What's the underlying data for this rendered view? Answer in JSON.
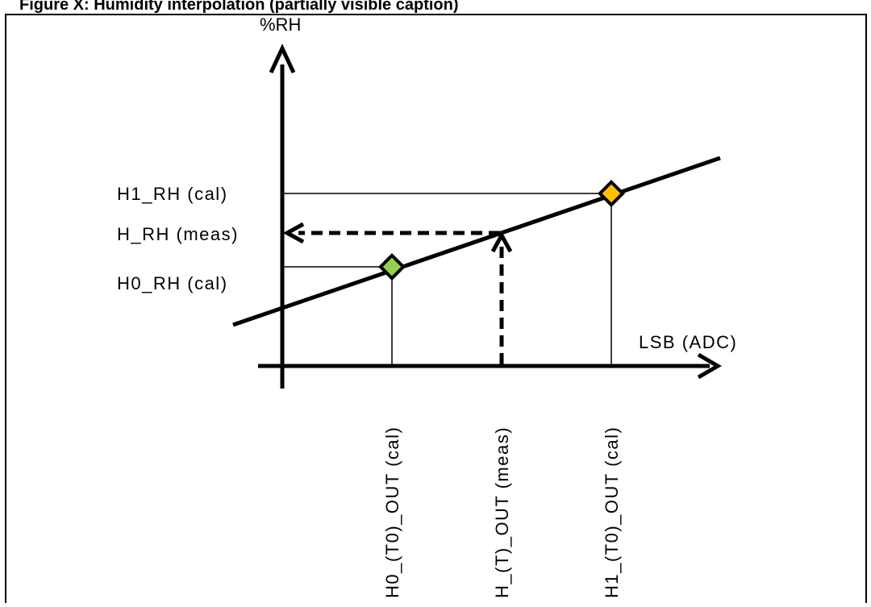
{
  "caption": "Figure X: Humidity interpolation (partially visible caption)",
  "axes": {
    "y_label": "%RH",
    "x_label": "LSB (ADC)"
  },
  "y_levels": {
    "h1": "H1_RH (cal)",
    "h": "H_RH (meas)",
    "h0": "H0_RH (cal)"
  },
  "x_points": {
    "h0": "H0_(T0)_OUT (cal)",
    "h": "H_(T)_OUT (meas)",
    "h1": "H1_(T0)_OUT (cal)"
  },
  "colors": {
    "line": "#000000",
    "point_h0": "#92D050",
    "point_h1": "#FFC000",
    "frame": "#000000"
  }
}
